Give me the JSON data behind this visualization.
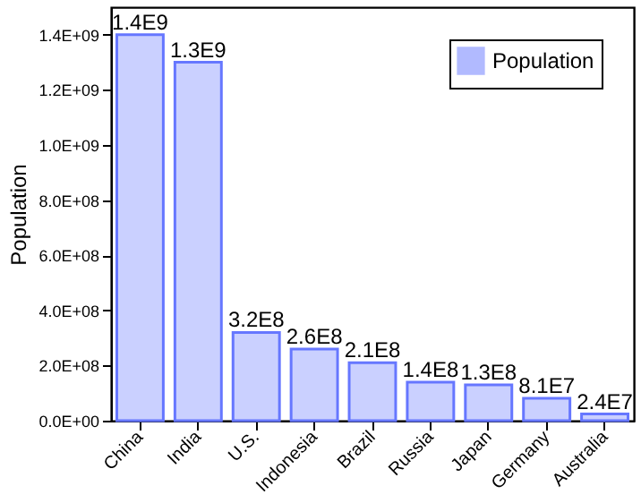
{
  "chart_data": {
    "type": "bar",
    "categories": [
      "China",
      "India",
      "U.S.",
      "Indonesia",
      "Brazil",
      "Russia",
      "Japan",
      "Germany",
      "Australia"
    ],
    "series": [
      {
        "name": "Population",
        "color": "#6677ff",
        "values": [
          1400000000,
          1300000000,
          320000000,
          260000000,
          210000000,
          140000000,
          130000000,
          81000000,
          24000000
        ]
      }
    ],
    "value_labels": [
      "1.4E9",
      "1.3E9",
      "3.2E8",
      "2.6E8",
      "2.1E8",
      "1.4E8",
      "1.3E8",
      "8.1E7",
      "2.4E7"
    ],
    "ylabel": "Population",
    "ylim": [
      0,
      1500000000
    ],
    "yticks": [
      {
        "value": 0,
        "label": "0.0E+00"
      },
      {
        "value": 200000000,
        "label": "2.0E+08"
      },
      {
        "value": 400000000,
        "label": "4.0E+08"
      },
      {
        "value": 600000000,
        "label": "6.0E+08"
      },
      {
        "value": 800000000,
        "label": "8.0E+08"
      },
      {
        "value": 1000000000,
        "label": "1.0E+09"
      },
      {
        "value": 1200000000,
        "label": "1.2E+09"
      },
      {
        "value": 1400000000,
        "label": "1.4E+09"
      }
    ],
    "legend": "top right",
    "grid": false
  }
}
